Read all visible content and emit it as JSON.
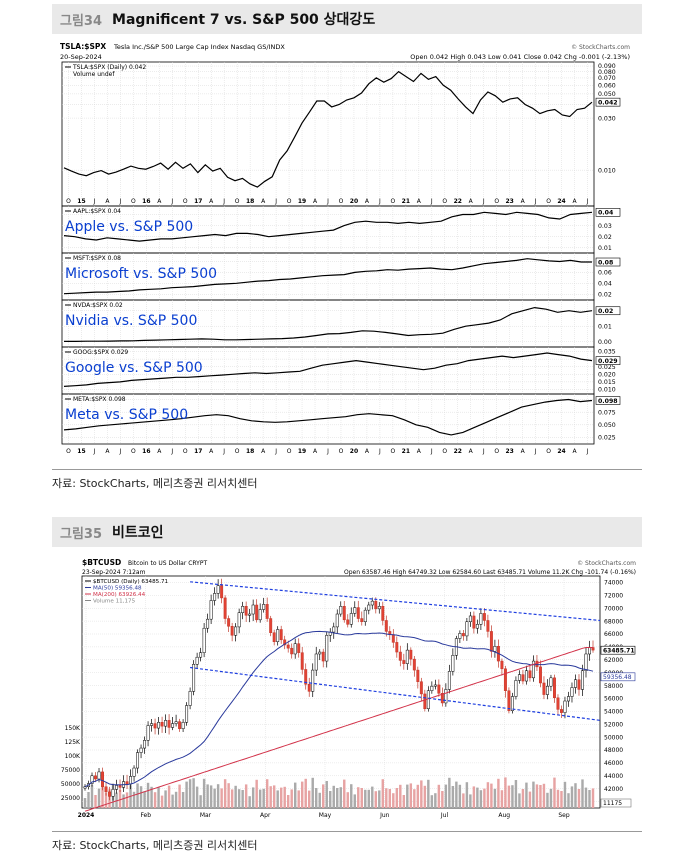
{
  "figure34": {
    "number": "그림34",
    "title": "Magnificent 7 vs. S&P 500  상대강도",
    "source": "자료: StockCharts, 메리츠증권 리서치센터"
  },
  "figure35": {
    "number": "그림35",
    "title": "비트코인",
    "source": "자료: StockCharts, 메리츠증권 리서치센터"
  },
  "chart_data": [
    {
      "type": "line",
      "header": {
        "symbol": "TSLA:$SPX",
        "desc": "Tesla Inc./S&P 500 Large Cap Index  Nasdaq GS/INDX",
        "date": "20-Sep-2024",
        "ohlc": "Open 0.042  High 0.043  Low 0.041  Close 0.042  Chg -0.001 (-2.13%)",
        "watermark": "© StockCharts.com"
      },
      "x_labels": [
        "O",
        "15",
        "J",
        "A",
        "J",
        "O",
        "16",
        "A",
        "J",
        "O",
        "17",
        "A",
        "J",
        "O",
        "18",
        "A",
        "J",
        "O",
        "19",
        "A",
        "J",
        "O",
        "20",
        "A",
        "J",
        "O",
        "21",
        "A",
        "J",
        "O",
        "22",
        "A",
        "J",
        "O",
        "23",
        "A",
        "J",
        "O",
        "24",
        "A",
        "J"
      ],
      "panels": [
        {
          "legend": "TSLA:$SPX (Daily) 0.042",
          "legend2": "Volume undef",
          "label": "",
          "last": "0.042",
          "ticks": [
            "0.090",
            "0.080",
            "0.070",
            "0.060",
            "0.050",
            "0.040",
            "0.030",
            "0.010"
          ],
          "ymin": 0.005,
          "ymax": 0.092,
          "log": true,
          "values": [
            0.0105,
            0.0098,
            0.0092,
            0.0089,
            0.0095,
            0.0099,
            0.0092,
            0.0096,
            0.0102,
            0.0109,
            0.0104,
            0.0102,
            0.0108,
            0.0116,
            0.0102,
            0.0118,
            0.0104,
            0.0114,
            0.0095,
            0.0112,
            0.0098,
            0.0104,
            0.0086,
            0.008,
            0.0084,
            0.0075,
            0.007,
            0.0079,
            0.0087,
            0.0124,
            0.015,
            0.02,
            0.027,
            0.034,
            0.043,
            0.043,
            0.038,
            0.04,
            0.044,
            0.046,
            0.051,
            0.062,
            0.07,
            0.064,
            0.069,
            0.08,
            0.072,
            0.065,
            0.077,
            0.068,
            0.072,
            0.06,
            0.054,
            0.045,
            0.038,
            0.033,
            0.044,
            0.052,
            0.048,
            0.042,
            0.045,
            0.046,
            0.04,
            0.037,
            0.033,
            0.035,
            0.036,
            0.032,
            0.031,
            0.036,
            0.037,
            0.042
          ]
        },
        {
          "legend": "AAPL:$SPX 0.04",
          "label": "Apple vs. S&P 500",
          "last": "0.04",
          "ticks": [
            "0.04",
            "0.03",
            "0.02",
            "0.01"
          ],
          "ymin": 0.008,
          "ymax": 0.045,
          "log": false,
          "values": [
            0.021,
            0.02,
            0.018,
            0.017,
            0.019,
            0.018,
            0.017,
            0.016,
            0.017,
            0.018,
            0.018,
            0.019,
            0.02,
            0.021,
            0.022,
            0.021,
            0.023,
            0.023,
            0.022,
            0.02,
            0.021,
            0.022,
            0.023,
            0.024,
            0.025,
            0.026,
            0.03,
            0.033,
            0.034,
            0.033,
            0.033,
            0.032,
            0.033,
            0.032,
            0.033,
            0.034,
            0.038,
            0.04,
            0.04,
            0.042,
            0.041,
            0.04,
            0.042,
            0.041,
            0.04,
            0.037,
            0.036,
            0.04,
            0.041,
            0.042
          ]
        },
        {
          "legend": "MSFT:$SPX 0.08",
          "label": "Microsoft vs. S&P 500",
          "last": "0.08",
          "ticks": [
            "0.08",
            "0.06",
            "0.04",
            "0.02"
          ],
          "ymin": 0.015,
          "ymax": 0.09,
          "log": false,
          "values": [
            0.021,
            0.022,
            0.023,
            0.024,
            0.024,
            0.025,
            0.026,
            0.028,
            0.029,
            0.03,
            0.032,
            0.033,
            0.034,
            0.036,
            0.038,
            0.039,
            0.04,
            0.042,
            0.044,
            0.045,
            0.047,
            0.048,
            0.05,
            0.052,
            0.054,
            0.055,
            0.056,
            0.06,
            0.062,
            0.063,
            0.065,
            0.064,
            0.066,
            0.067,
            0.068,
            0.066,
            0.065,
            0.068,
            0.072,
            0.076,
            0.078,
            0.08,
            0.082,
            0.085,
            0.083,
            0.081,
            0.08,
            0.082,
            0.079,
            0.079
          ]
        },
        {
          "legend": "NVDA:$SPX 0.02",
          "label": "Nvidia vs. S&P 500",
          "last": "0.02",
          "ticks": [
            "0.02",
            "0.01",
            "0.00"
          ],
          "ymin": -0.0015,
          "ymax": 0.025,
          "log": false,
          "values": [
            0.0002,
            0.0002,
            0.0003,
            0.0003,
            0.0004,
            0.0005,
            0.0006,
            0.0008,
            0.001,
            0.0012,
            0.0014,
            0.0016,
            0.0018,
            0.0016,
            0.0012,
            0.0012,
            0.0014,
            0.0016,
            0.0018,
            0.002,
            0.0024,
            0.003,
            0.004,
            0.005,
            0.0052,
            0.006,
            0.007,
            0.0068,
            0.006,
            0.005,
            0.004,
            0.0045,
            0.0048,
            0.0055,
            0.008,
            0.01,
            0.011,
            0.012,
            0.014,
            0.018,
            0.02,
            0.022,
            0.021,
            0.019,
            0.02,
            0.019,
            0.02
          ]
        },
        {
          "legend": "GOOG:$SPX 0.029",
          "label": "Google vs. S&P 500",
          "last": "0.029",
          "ticks": [
            "0.035",
            "0.030",
            "0.025",
            "0.020",
            "0.015",
            "0.010"
          ],
          "ymin": 0.009,
          "ymax": 0.036,
          "log": false,
          "values": [
            0.012,
            0.0125,
            0.013,
            0.014,
            0.0145,
            0.015,
            0.016,
            0.0165,
            0.017,
            0.0175,
            0.018,
            0.018,
            0.0185,
            0.019,
            0.0195,
            0.02,
            0.0205,
            0.021,
            0.0205,
            0.021,
            0.0215,
            0.022,
            0.024,
            0.026,
            0.027,
            0.028,
            0.029,
            0.028,
            0.027,
            0.026,
            0.025,
            0.024,
            0.023,
            0.024,
            0.026,
            0.027,
            0.029,
            0.03,
            0.031,
            0.032,
            0.031,
            0.032,
            0.033,
            0.034,
            0.033,
            0.032,
            0.03,
            0.029
          ]
        },
        {
          "legend": "META:$SPX 0.098",
          "label": "Meta vs. S&P 500",
          "last": "0.098",
          "ticks": [
            "0.100",
            "0.075",
            "0.050",
            "0.025"
          ],
          "ymin": 0.018,
          "ymax": 0.105,
          "log": false,
          "values": [
            0.04,
            0.042,
            0.045,
            0.048,
            0.05,
            0.052,
            0.054,
            0.056,
            0.058,
            0.06,
            0.062,
            0.065,
            0.068,
            0.07,
            0.068,
            0.062,
            0.058,
            0.056,
            0.055,
            0.056,
            0.058,
            0.06,
            0.062,
            0.064,
            0.066,
            0.07,
            0.072,
            0.07,
            0.068,
            0.06,
            0.05,
            0.045,
            0.035,
            0.03,
            0.035,
            0.045,
            0.055,
            0.065,
            0.075,
            0.085,
            0.09,
            0.095,
            0.098,
            0.1,
            0.096,
            0.098
          ]
        }
      ]
    },
    {
      "type": "line",
      "header": {
        "symbol": "$BTCUSD",
        "desc": "Bitcoin to US Dollar  CRYPT",
        "date": "23-Sep-2024 7:12am",
        "ohlc": "Open 63587.46  High 64749.32  Low 62584.60  Last 63485.71  Volume 11.2K  Chg -101.74 (-0.16%)",
        "watermark": "© StockCharts.com"
      },
      "legend": [
        "$BTCUSD (Daily) 63485.71",
        "MA(50) 59356.48",
        "MA(200) 63926.44",
        "Volume 11,175"
      ],
      "x_labels": [
        "2024",
        "Feb",
        "Mar",
        "Apr",
        "May",
        "Jun",
        "Jul",
        "Aug",
        "Sep"
      ],
      "y_ticks": [
        "74000",
        "72000",
        "70000",
        "68000",
        "66000",
        "64000",
        "62000",
        "60000",
        "58000",
        "56000",
        "54000",
        "52000",
        "50000",
        "48000",
        "46000",
        "44000",
        "42000",
        "40000"
      ],
      "ylim": [
        39000,
        75000
      ],
      "last_price": "63485.71",
      "ma50_last": "59356.48",
      "ma200_last": "63926.44",
      "volume_last": "11175",
      "volume_ticks": [
        "150K",
        "125K",
        "100K",
        "75000",
        "50000",
        "25000"
      ],
      "close": [
        42300,
        42800,
        44000,
        43500,
        44600,
        42300,
        41500,
        40800,
        41900,
        42500,
        42200,
        43100,
        42700,
        43900,
        45200,
        47600,
        48300,
        49500,
        51800,
        52100,
        51400,
        52300,
        51700,
        52600,
        51500,
        52100,
        52400,
        51300,
        52300,
        54900,
        57100,
        61300,
        62400,
        63100,
        66900,
        68300,
        71200,
        72300,
        73500,
        71600,
        68400,
        67200,
        65800,
        67100,
        69300,
        70300,
        68900,
        69100,
        70500,
        68200,
        69800,
        70600,
        68400,
        66200,
        64800,
        66700,
        65100,
        64300,
        63800,
        62900,
        64500,
        63100,
        60500,
        58200,
        57100,
        60400,
        62900,
        63200,
        61800,
        65800,
        66300,
        67100,
        69100,
        70300,
        68200,
        67500,
        69200,
        70100,
        68400,
        67900,
        69700,
        70500,
        71100,
        69900,
        70300,
        68100,
        66400,
        65900,
        64700,
        63200,
        61900,
        61400,
        63500,
        62100,
        60400,
        58600,
        56700,
        54400,
        57200,
        57900,
        58100,
        56800,
        55300,
        57400,
        60200,
        62700,
        65300,
        66100,
        65700,
        67900,
        68800,
        66900,
        67500,
        69200,
        68100,
        66400,
        63300,
        64100,
        61800,
        60600,
        57200,
        54100,
        56300,
        58800,
        59700,
        58700,
        60300,
        59200,
        61800,
        60900,
        58400,
        56600,
        57900,
        59200,
        56100,
        54300,
        53800,
        55600,
        56300,
        57700,
        58900,
        57400,
        60300,
        62900,
        63900,
        63500
      ]
    }
  ]
}
